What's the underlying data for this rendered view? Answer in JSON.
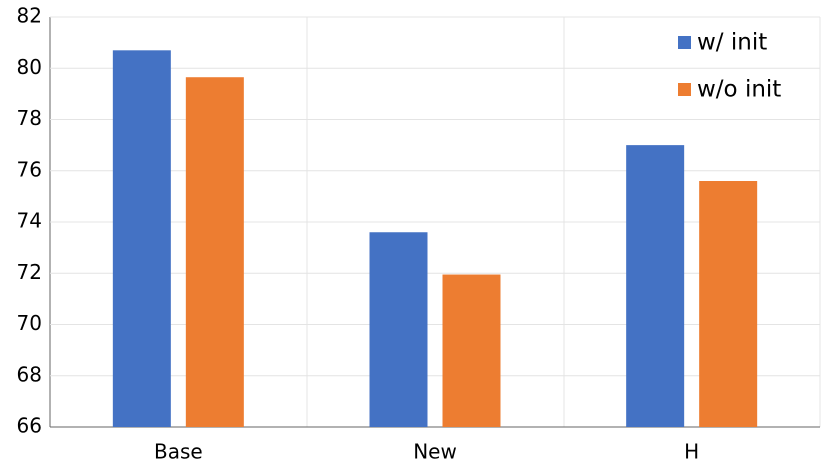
{
  "chart_data": {
    "type": "bar",
    "categories": [
      "Base",
      "New",
      "H"
    ],
    "series": [
      {
        "name": "w/ init",
        "color": "#4472c4",
        "values": [
          80.7,
          73.6,
          77.0
        ]
      },
      {
        "name": "w/o init",
        "color": "#ed7d31",
        "values": [
          79.65,
          71.95,
          75.6
        ]
      }
    ],
    "ylim": [
      66,
      82
    ],
    "yticks": [
      66,
      68,
      70,
      72,
      74,
      76,
      78,
      80,
      82
    ],
    "grid": true,
    "legend": "top-right"
  }
}
